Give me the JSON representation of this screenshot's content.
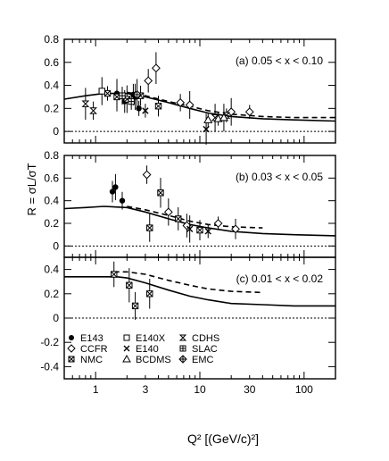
{
  "chart_data": [
    {
      "type": "scatter",
      "panel_label": "(a)",
      "range_text": "0.05 < x < 0.10",
      "xscale": "log",
      "xlim": [
        0.5,
        200
      ],
      "ylim": [
        -0.1,
        0.8
      ],
      "yticks": [
        "0",
        "0.2",
        "0.4",
        "0.6",
        "0.8"
      ],
      "series": [
        {
          "name": "E143",
          "marker": "filled-circle",
          "points": [
            [
              1.6,
              0.33
            ],
            [
              1.9,
              0.26
            ],
            [
              2.3,
              0.32
            ],
            [
              2.6,
              0.2
            ],
            [
              2.4,
              0.3
            ]
          ]
        },
        {
          "name": "CCFR",
          "marker": "diamond",
          "points": [
            [
              3.2,
              0.44
            ],
            [
              3.8,
              0.55
            ],
            [
              6.5,
              0.25
            ],
            [
              8.0,
              0.23
            ],
            [
              20,
              0.17
            ],
            [
              30,
              0.17
            ]
          ]
        },
        {
          "name": "NMC",
          "marker": "cross-box",
          "points": [
            [
              1.3,
              0.33
            ],
            [
              1.6,
              0.3
            ],
            [
              2.0,
              0.28
            ],
            [
              2.7,
              0.31
            ],
            [
              4.0,
              0.22
            ]
          ]
        },
        {
          "name": "E140X",
          "marker": "open-square",
          "points": [
            [
              1.15,
              0.35
            ]
          ]
        },
        {
          "name": "E140",
          "marker": "x",
          "points": [
            [
              3.0,
              0.18
            ],
            [
              11.5,
              0.02
            ]
          ]
        },
        {
          "name": "CDHS",
          "marker": "hourglass",
          "points": [
            [
              0.8,
              0.24
            ],
            [
              0.95,
              0.18
            ],
            [
              14,
              0.12
            ],
            [
              18,
              0.14
            ]
          ]
        },
        {
          "name": "SLAC",
          "marker": "plus-box",
          "points": [
            [
              1.8,
              0.31
            ],
            [
              2.2,
              0.26
            ]
          ]
        },
        {
          "name": "BCDMS",
          "marker": "triangle",
          "points": [
            [
              12,
              0.1
            ],
            [
              15,
              0.11
            ],
            [
              17,
              0.12
            ]
          ]
        },
        {
          "name": "EMC",
          "marker": "plus-diamond",
          "points": [
            [
              2.5,
              0.32
            ]
          ]
        }
      ],
      "curves": [
        {
          "style": "solid",
          "x": [
            0.5,
            0.8,
            1.2,
            2,
            3,
            5,
            8,
            12,
            20,
            40,
            80,
            200
          ],
          "y": [
            0.28,
            0.31,
            0.33,
            0.33,
            0.3,
            0.25,
            0.2,
            0.16,
            0.13,
            0.11,
            0.1,
            0.09
          ]
        },
        {
          "style": "dashed",
          "x": [
            2,
            3,
            5,
            8,
            12,
            20,
            40,
            80,
            200
          ],
          "y": [
            0.34,
            0.31,
            0.26,
            0.22,
            0.18,
            0.15,
            0.13,
            0.12,
            0.12
          ]
        }
      ]
    },
    {
      "type": "scatter",
      "panel_label": "(b)",
      "range_text": "0.03 < x < 0.05",
      "xscale": "log",
      "xlim": [
        0.5,
        200
      ],
      "ylim": [
        -0.1,
        0.8
      ],
      "yticks": [
        "0",
        "0.2",
        "0.4",
        "0.6",
        "0.8"
      ],
      "series": [
        {
          "name": "E143",
          "marker": "filled-circle",
          "points": [
            [
              1.45,
              0.48
            ],
            [
              1.55,
              0.52
            ],
            [
              1.8,
              0.4
            ]
          ]
        },
        {
          "name": "CCFR",
          "marker": "diamond",
          "points": [
            [
              3.1,
              0.63
            ],
            [
              5.0,
              0.3
            ],
            [
              7.5,
              0.18
            ],
            [
              15,
              0.2
            ],
            [
              22,
              0.15
            ]
          ]
        },
        {
          "name": "NMC",
          "marker": "cross-box",
          "points": [
            [
              3.3,
              0.16
            ],
            [
              4.2,
              0.47
            ],
            [
              6.2,
              0.24
            ],
            [
              10,
              0.14
            ]
          ]
        },
        {
          "name": "E140",
          "marker": "x",
          "points": [
            [
              8.0,
              0.15
            ],
            [
              12,
              0.13
            ]
          ]
        }
      ],
      "curves": [
        {
          "style": "solid",
          "x": [
            0.5,
            0.8,
            1.2,
            2,
            3,
            5,
            8,
            12,
            20,
            40,
            80,
            200
          ],
          "y": [
            0.33,
            0.34,
            0.35,
            0.34,
            0.3,
            0.24,
            0.19,
            0.16,
            0.13,
            0.11,
            0.1,
            0.09
          ]
        },
        {
          "style": "dashed",
          "x": [
            2,
            3,
            5,
            8,
            12,
            20,
            40
          ],
          "y": [
            0.35,
            0.32,
            0.27,
            0.22,
            0.19,
            0.17,
            0.16
          ]
        }
      ]
    },
    {
      "type": "scatter",
      "panel_label": "(c)",
      "range_text": "0.01 < x < 0.02",
      "xscale": "log",
      "xlim": [
        0.5,
        200
      ],
      "ylim": [
        -0.5,
        0.5
      ],
      "yticks": [
        "-0.4",
        "-0.2",
        "0",
        "0.2",
        "0.4"
      ],
      "xticks": [
        "1",
        "3",
        "10",
        "30",
        "100"
      ],
      "xlabel": "Q² [(GeV/c)²]",
      "ylabel": "R = σL/σT",
      "series": [
        {
          "name": "NMC",
          "marker": "cross-box",
          "points": [
            [
              1.5,
              0.36
            ],
            [
              2.1,
              0.27
            ],
            [
              2.4,
              0.1
            ],
            [
              3.3,
              0.2
            ]
          ]
        }
      ],
      "curves": [
        {
          "style": "solid",
          "x": [
            0.5,
            0.8,
            1.2,
            1.6,
            2,
            3,
            5,
            8,
            12,
            20,
            40,
            80,
            200
          ],
          "y": [
            0.34,
            0.34,
            0.34,
            0.34,
            0.33,
            0.29,
            0.23,
            0.18,
            0.15,
            0.12,
            0.11,
            0.1,
            0.1
          ]
        },
        {
          "style": "dashed",
          "x": [
            1.5,
            2,
            3,
            5,
            8,
            12,
            20,
            40
          ],
          "y": [
            0.38,
            0.38,
            0.36,
            0.31,
            0.27,
            0.24,
            0.22,
            0.21
          ]
        }
      ],
      "legend": [
        {
          "name": "E143",
          "marker": "filled-circle"
        },
        {
          "name": "CCFR",
          "marker": "diamond"
        },
        {
          "name": "NMC",
          "marker": "cross-box"
        },
        {
          "name": "E140X",
          "marker": "open-square"
        },
        {
          "name": "E140",
          "marker": "x"
        },
        {
          "name": "BCDMS",
          "marker": "triangle"
        },
        {
          "name": "CDHS",
          "marker": "hourglass"
        },
        {
          "name": "SLAC",
          "marker": "plus-box"
        },
        {
          "name": "EMC",
          "marker": "plus-diamond"
        }
      ]
    }
  ],
  "labels": {
    "ylabel": "R = σL/σT",
    "xlabel": "Q² [(GeV/c)²]"
  }
}
